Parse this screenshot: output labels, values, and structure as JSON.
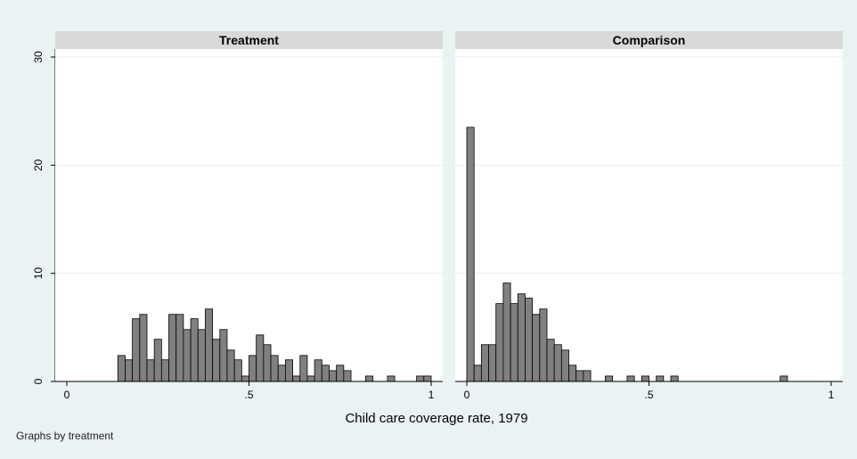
{
  "chart_data": {
    "type": "bar",
    "panels": [
      {
        "title": "Treatment",
        "bins": [
          [
            0.14,
            2.4
          ],
          [
            0.16,
            2.0
          ],
          [
            0.18,
            5.8
          ],
          [
            0.2,
            6.2
          ],
          [
            0.22,
            2.0
          ],
          [
            0.24,
            3.9
          ],
          [
            0.26,
            2.0
          ],
          [
            0.28,
            6.2
          ],
          [
            0.3,
            6.2
          ],
          [
            0.32,
            4.8
          ],
          [
            0.34,
            5.8
          ],
          [
            0.36,
            4.8
          ],
          [
            0.38,
            6.7
          ],
          [
            0.4,
            3.9
          ],
          [
            0.42,
            4.8
          ],
          [
            0.44,
            2.9
          ],
          [
            0.46,
            2.0
          ],
          [
            0.48,
            0.5
          ],
          [
            0.5,
            2.4
          ],
          [
            0.52,
            4.3
          ],
          [
            0.54,
            3.4
          ],
          [
            0.56,
            2.4
          ],
          [
            0.58,
            1.5
          ],
          [
            0.6,
            2.0
          ],
          [
            0.62,
            0.5
          ],
          [
            0.64,
            2.4
          ],
          [
            0.66,
            0.5
          ],
          [
            0.68,
            2.0
          ],
          [
            0.7,
            1.5
          ],
          [
            0.72,
            1.0
          ],
          [
            0.74,
            1.5
          ],
          [
            0.76,
            1.0
          ],
          [
            0.82,
            0.5
          ],
          [
            0.88,
            0.5
          ],
          [
            0.96,
            0.5
          ],
          [
            0.98,
            0.5
          ]
        ]
      },
      {
        "title": "Comparison",
        "bins": [
          [
            0.0,
            23.5
          ],
          [
            0.02,
            1.5
          ],
          [
            0.04,
            3.4
          ],
          [
            0.06,
            3.4
          ],
          [
            0.08,
            7.2
          ],
          [
            0.1,
            9.1
          ],
          [
            0.12,
            7.2
          ],
          [
            0.14,
            8.1
          ],
          [
            0.16,
            7.7
          ],
          [
            0.18,
            6.2
          ],
          [
            0.2,
            6.7
          ],
          [
            0.22,
            3.9
          ],
          [
            0.24,
            3.4
          ],
          [
            0.26,
            2.9
          ],
          [
            0.28,
            1.5
          ],
          [
            0.3,
            1.0
          ],
          [
            0.32,
            1.0
          ],
          [
            0.38,
            0.5
          ],
          [
            0.44,
            0.5
          ],
          [
            0.48,
            0.5
          ],
          [
            0.52,
            0.5
          ],
          [
            0.56,
            0.5
          ],
          [
            0.86,
            0.5
          ]
        ]
      }
    ],
    "bin_width": 0.02,
    "xlim": [
      0,
      1
    ],
    "ylim": [
      0,
      30
    ],
    "x_ticks": [
      0,
      0.5,
      1
    ],
    "x_tick_labels": [
      "0",
      ".5",
      "1"
    ],
    "y_ticks": [
      0,
      10,
      20,
      30
    ],
    "y_tick_labels": [
      "0",
      "10",
      "20",
      "30"
    ],
    "xlabel": "Child care coverage rate, 1979",
    "ylabel": "",
    "grid": true,
    "colors": {
      "bar_fill": "#808080",
      "bar_stroke": "#000000",
      "header": "#d9d9d9",
      "background": "#eaf2f3",
      "plot_bg": "#ffffff"
    }
  },
  "footnote": "Graphs by treatment"
}
